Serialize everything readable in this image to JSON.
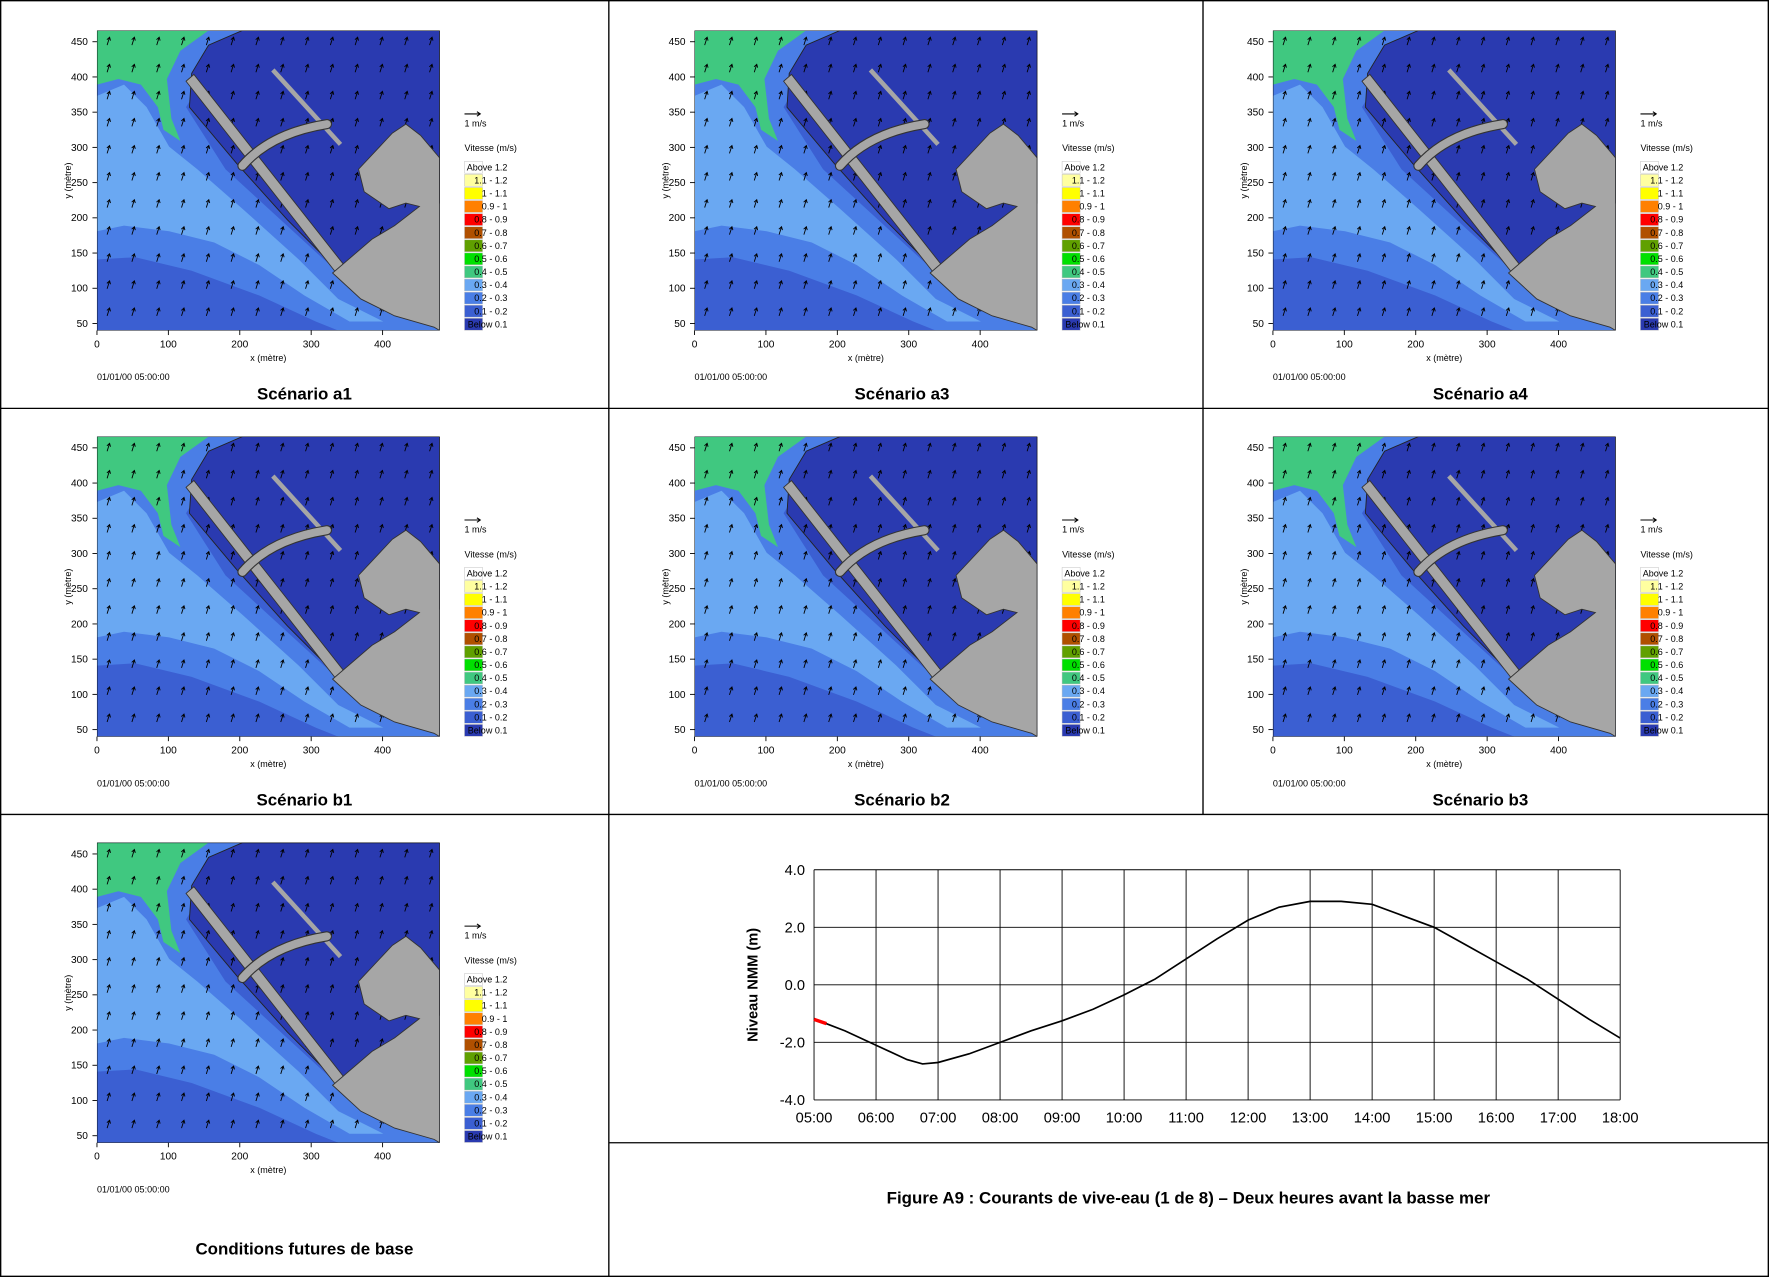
{
  "panels": [
    {
      "caption": "Scénario a1"
    },
    {
      "caption": "Scénario a3"
    },
    {
      "caption": "Scénario a4"
    },
    {
      "caption": "Scénario b1"
    },
    {
      "caption": "Scénario b2"
    },
    {
      "caption": "Scénario b3"
    },
    {
      "caption": "Conditions futures de base"
    }
  ],
  "map": {
    "xlabel": "x (mètre)",
    "ylabel": "y (mètre)",
    "timestamp": "01/01/00 05:00:00",
    "xlim": [
      0,
      480
    ],
    "ylim": [
      40,
      466
    ],
    "xticks": [
      0,
      100,
      200,
      300,
      400
    ],
    "yticks": [
      50,
      100,
      150,
      200,
      250,
      300,
      350,
      400,
      450
    ],
    "scale_label": "1 m/s",
    "legend_title": "Vitesse (m/s)",
    "legend": [
      {
        "label": "Above 1.2",
        "color": "#ffffff"
      },
      {
        "label": "1.1 - 1.2",
        "color": "#ffffa0"
      },
      {
        "label": "1 - 1.1",
        "color": "#ffff00"
      },
      {
        "label": "0.9 - 1",
        "color": "#ff8000"
      },
      {
        "label": "0.8 - 0.9",
        "color": "#ff0000"
      },
      {
        "label": "0.7 - 0.8",
        "color": "#b05000"
      },
      {
        "label": "0.6 - 0.7",
        "color": "#60a000"
      },
      {
        "label": "0.5 - 0.6",
        "color": "#00e000"
      },
      {
        "label": "0.4 - 0.5",
        "color": "#40c880"
      },
      {
        "label": "0.3 - 0.4",
        "color": "#6aa8f2"
      },
      {
        "label": "0.2 - 0.3",
        "color": "#4a7ee6"
      },
      {
        "label": "0.1 - 0.2",
        "color": "#3b5fd2"
      },
      {
        "label": "Below 0.1",
        "color": "#2a3ab0"
      }
    ]
  },
  "chart_data": {
    "type": "line",
    "ylabel": "Niveau NMM (m)",
    "x": [
      5,
      5.2,
      5.5,
      6,
      6.5,
      6.75,
      7,
      7.5,
      8,
      8.5,
      9,
      9.5,
      10,
      10.5,
      11,
      11.5,
      12,
      12.5,
      13,
      13.5,
      14,
      14.5,
      15,
      15.5,
      16,
      16.5,
      17,
      17.5,
      18
    ],
    "series": [
      {
        "color": "#000000",
        "values": [
          -1.2,
          -1.35,
          -1.6,
          -2.1,
          -2.6,
          -2.75,
          -2.7,
          -2.4,
          -2.0,
          -1.6,
          -1.25,
          -0.85,
          -0.35,
          0.2,
          0.9,
          1.6,
          2.25,
          2.7,
          2.9,
          2.9,
          2.8,
          2.4,
          2.0,
          1.4,
          0.8,
          0.2,
          -0.5,
          -1.2,
          -1.85
        ]
      },
      {
        "color": "#ff0000",
        "values": [
          -1.2,
          -1.35,
          null,
          null,
          null,
          null,
          null,
          null,
          null,
          null,
          null,
          null,
          null,
          null,
          null,
          null,
          null,
          null,
          null,
          null,
          null,
          null,
          null,
          null,
          null,
          null,
          null,
          null,
          null
        ]
      }
    ],
    "xlim": [
      5,
      18
    ],
    "ylim": [
      -4,
      4
    ],
    "xticks": [
      {
        "value": 5,
        "label": "05:00"
      },
      {
        "value": 6,
        "label": "06:00"
      },
      {
        "value": 7,
        "label": "07:00"
      },
      {
        "value": 8,
        "label": "08:00"
      },
      {
        "value": 9,
        "label": "09:00"
      },
      {
        "value": 10,
        "label": "10:00"
      },
      {
        "value": 11,
        "label": "11:00"
      },
      {
        "value": 12,
        "label": "12:00"
      },
      {
        "value": 13,
        "label": "13:00"
      },
      {
        "value": 14,
        "label": "14:00"
      },
      {
        "value": 15,
        "label": "15:00"
      },
      {
        "value": 16,
        "label": "16:00"
      },
      {
        "value": 17,
        "label": "17:00"
      },
      {
        "value": 18,
        "label": "18:00"
      }
    ],
    "yticks": [
      {
        "value": -4,
        "label": "-4.0"
      },
      {
        "value": -2,
        "label": "-2.0"
      },
      {
        "value": 0,
        "label": "0.0"
      },
      {
        "value": 2,
        "label": "2.0"
      },
      {
        "value": 4,
        "label": "4.0"
      }
    ],
    "grid": true
  },
  "caption": "Figure A9 : Courants de vive-eau (1 de 8) – Deux heures avant la basse mer"
}
